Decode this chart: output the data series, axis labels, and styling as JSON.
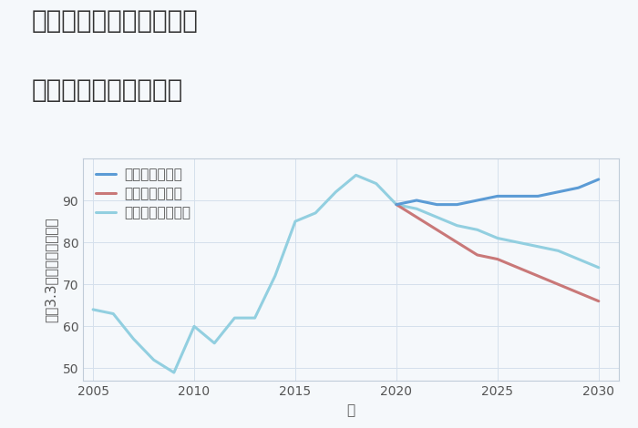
{
  "title_line1": "福岡県福岡市西区飯氏の",
  "title_line2": "中古戸建ての価格推移",
  "xlabel": "年",
  "ylabel": "坪（3.3㎡）単価（万円）",
  "plot_background": "#f5f8fb",
  "good_scenario": {
    "label": "グッドシナリオ",
    "color": "#5b9bd5",
    "years": [
      2020,
      2021,
      2022,
      2023,
      2024,
      2025,
      2026,
      2027,
      2028,
      2029,
      2030
    ],
    "values": [
      89,
      90,
      89,
      89,
      90,
      91,
      91,
      91,
      92,
      93,
      95
    ]
  },
  "bad_scenario": {
    "label": "バッドシナリオ",
    "color": "#c97878",
    "years": [
      2020,
      2021,
      2022,
      2023,
      2024,
      2025,
      2026,
      2027,
      2028,
      2029,
      2030
    ],
    "values": [
      89,
      86,
      83,
      80,
      77,
      76,
      74,
      72,
      70,
      68,
      66
    ]
  },
  "normal_scenario": {
    "label": "ノーマルシナリオ",
    "color": "#92cfe0",
    "years": [
      2005,
      2006,
      2007,
      2008,
      2009,
      2010,
      2011,
      2012,
      2013,
      2014,
      2015,
      2016,
      2017,
      2018,
      2019,
      2020,
      2021,
      2022,
      2023,
      2024,
      2025,
      2026,
      2027,
      2028,
      2029,
      2030
    ],
    "values": [
      64,
      63,
      57,
      52,
      49,
      60,
      56,
      62,
      62,
      72,
      85,
      87,
      92,
      96,
      94,
      89,
      88,
      86,
      84,
      83,
      81,
      80,
      79,
      78,
      76,
      74
    ]
  },
  "xlim": [
    2004.5,
    2031.0
  ],
  "ylim": [
    47,
    100
  ],
  "yticks": [
    50,
    60,
    70,
    80,
    90
  ],
  "xticks": [
    2005,
    2010,
    2015,
    2020,
    2025,
    2030
  ],
  "grid_color": "#d5e0ec",
  "linewidth": 2.2,
  "title_fontsize": 20,
  "label_fontsize": 11,
  "tick_fontsize": 10,
  "legend_fontsize": 11
}
